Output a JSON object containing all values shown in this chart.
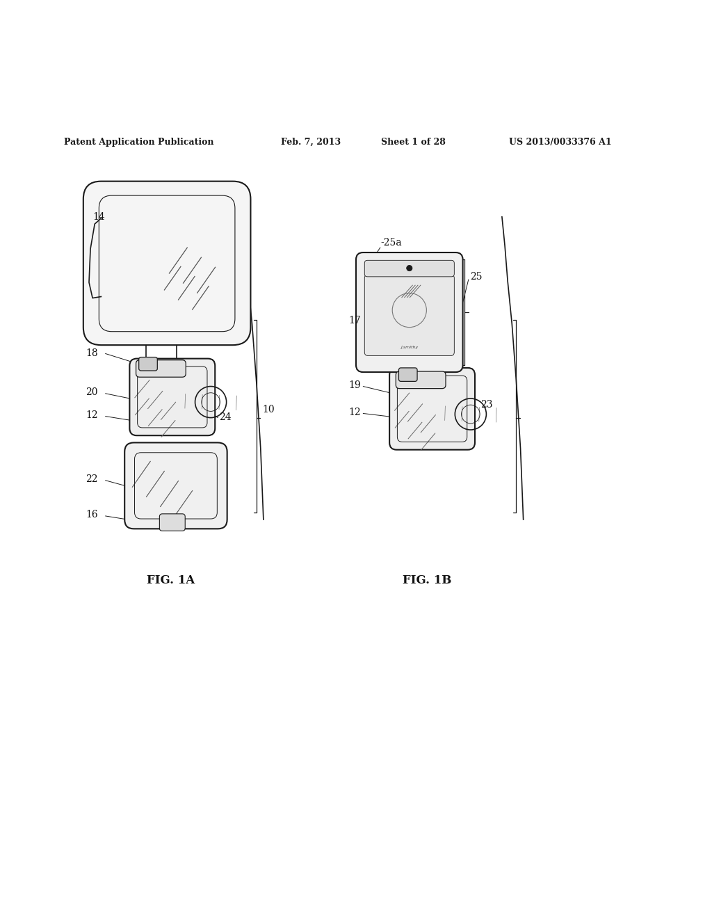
{
  "bg_color": "#ffffff",
  "header_text": "Patent Application Publication",
  "header_date": "Feb. 7, 2013",
  "header_sheet": "Sheet 1 of 28",
  "header_patent": "US 2013/0033376 A1",
  "fig1a_label": "FIG. 1A",
  "fig1b_label": "FIG. 1B",
  "line_color": "#1a1a1a",
  "label_color": "#111111",
  "label_fs": 10,
  "header_fs": 9,
  "fig_label_fs": 12
}
